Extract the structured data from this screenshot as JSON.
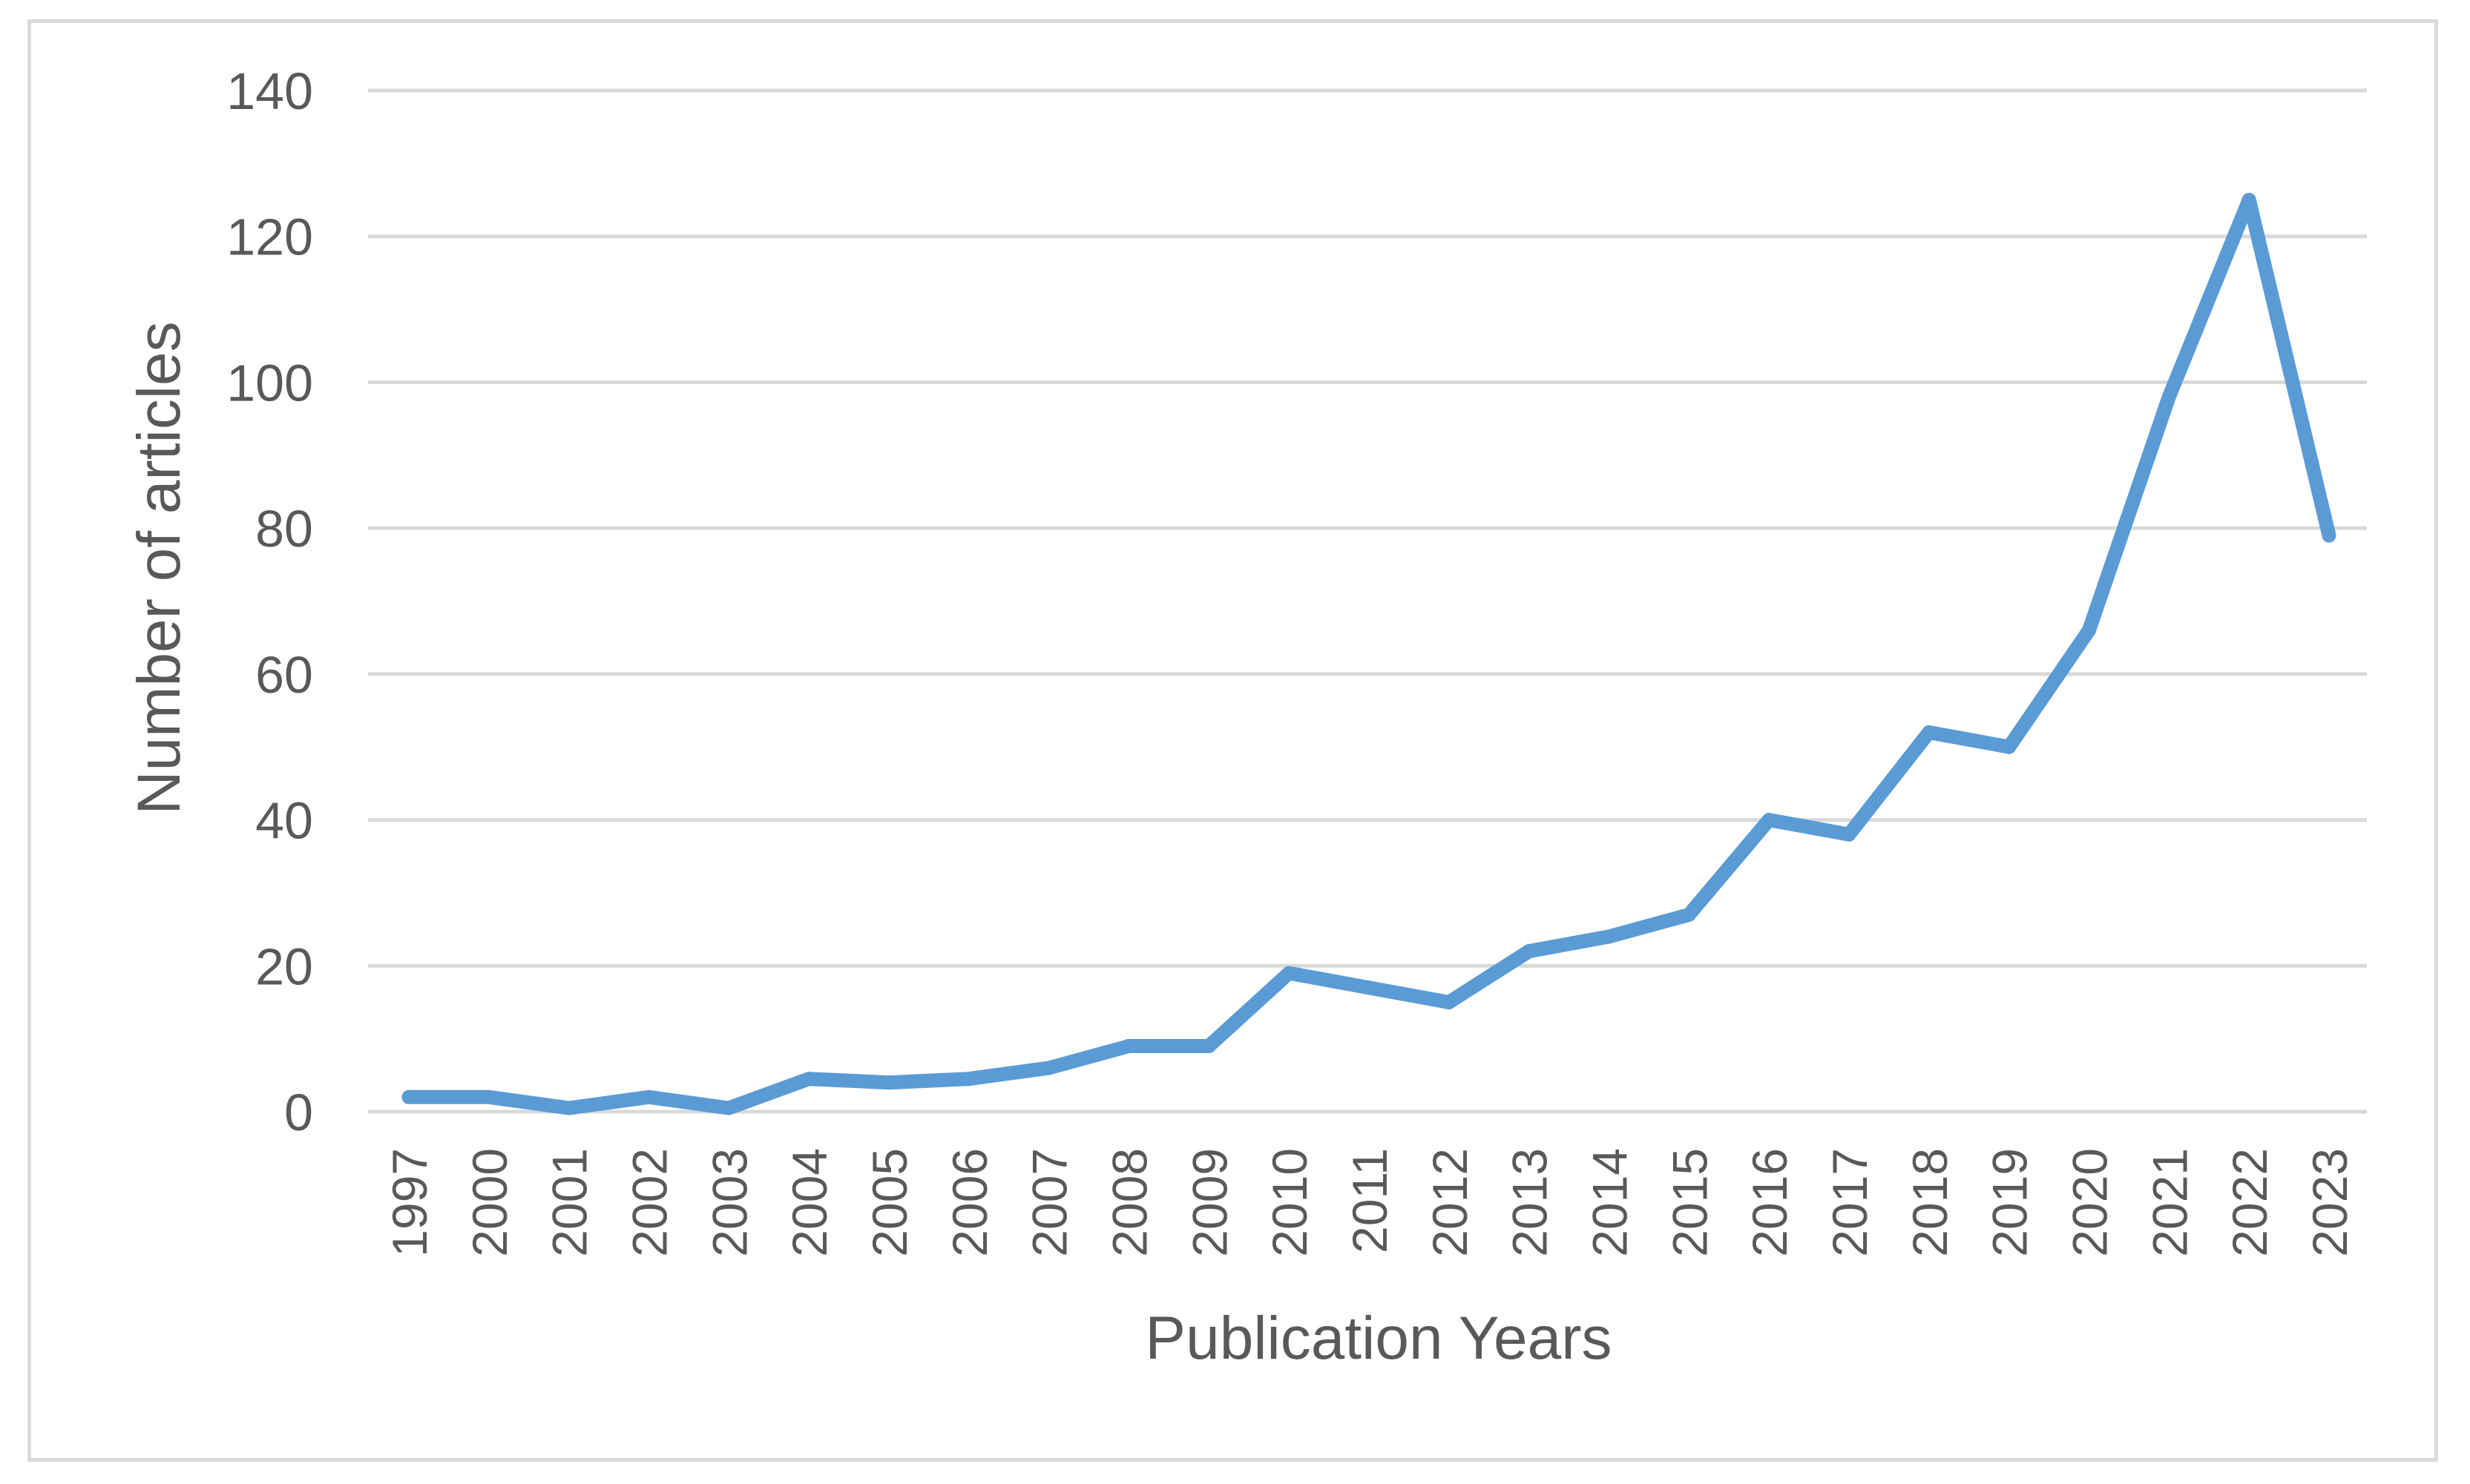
{
  "chart_data": {
    "type": "line",
    "xlabel": "Publication Years",
    "ylabel": "Number of articles",
    "categories": [
      "1997",
      "2000",
      "2001",
      "2002",
      "2003",
      "2004",
      "2005",
      "2006",
      "2007",
      "2008",
      "2009",
      "2010",
      "2011",
      "2012",
      "2013",
      "2014",
      "2015",
      "2016",
      "2017",
      "2018",
      "2019",
      "2020",
      "2021",
      "2022",
      "2023"
    ],
    "series": [
      {
        "values": [
          2,
          2,
          0.5,
          2,
          0.5,
          4.5,
          4,
          4.5,
          6,
          9,
          9,
          19,
          17,
          15,
          22,
          24,
          27,
          40,
          38,
          52,
          50,
          66,
          98,
          125,
          79
        ]
      }
    ],
    "ylim": [
      0,
      140
    ],
    "yticks": [
      0,
      20,
      40,
      60,
      80,
      100,
      120,
      140
    ],
    "grid": true,
    "legend": "none",
    "colors": {
      "line": "#5b9bd5",
      "grid": "#d9d9d9",
      "text": "#595959",
      "frame": "#d9d9d9"
    }
  }
}
